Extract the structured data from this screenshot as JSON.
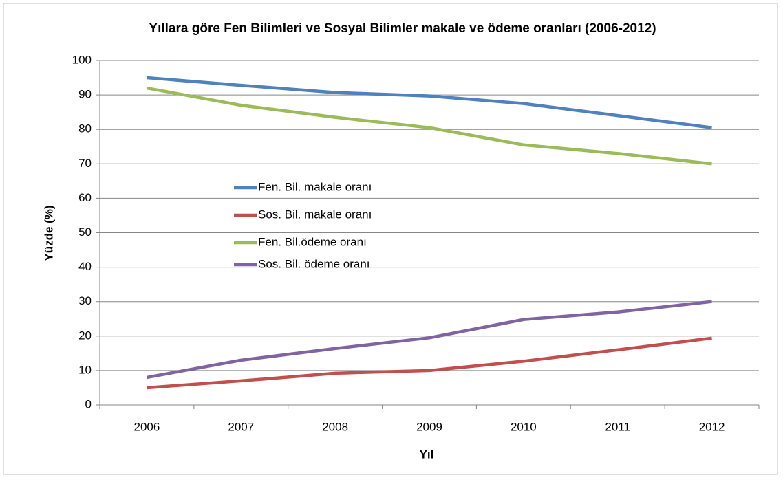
{
  "chart_data": {
    "type": "line",
    "title": "Yıllara göre Fen Bilimleri ve Sosyal Bilimler makale ve ödeme oranları (2006-2012)",
    "xlabel": "Yıl",
    "ylabel": "Yüzde (%)",
    "categories": [
      "2006",
      "2007",
      "2008",
      "2009",
      "2010",
      "2011",
      "2012"
    ],
    "series": [
      {
        "name": "Fen. Bil. makale oranı",
        "color": "#4f81bd",
        "values": [
          95,
          92.8,
          90.7,
          89.7,
          87.5,
          84,
          80.5
        ]
      },
      {
        "name": "Sos. Bil. makale oranı",
        "color": "#c0504d",
        "values": [
          5,
          7,
          9.2,
          10,
          12.7,
          16,
          19.4
        ]
      },
      {
        "name": "Fen. Bil.ödeme oranı",
        "color": "#9bbb59",
        "values": [
          92,
          87,
          83.5,
          80.5,
          75.5,
          73,
          70
        ]
      },
      {
        "name": "Sos. Bil. ödeme oranı",
        "color": "#8064a2",
        "values": [
          8,
          13,
          16.4,
          19.5,
          24.8,
          27,
          30
        ]
      }
    ],
    "ylim": [
      0,
      100
    ],
    "yticks": [
      0,
      10,
      20,
      30,
      40,
      50,
      60,
      70,
      80,
      90,
      100
    ],
    "grid": true,
    "legend": "left"
  }
}
